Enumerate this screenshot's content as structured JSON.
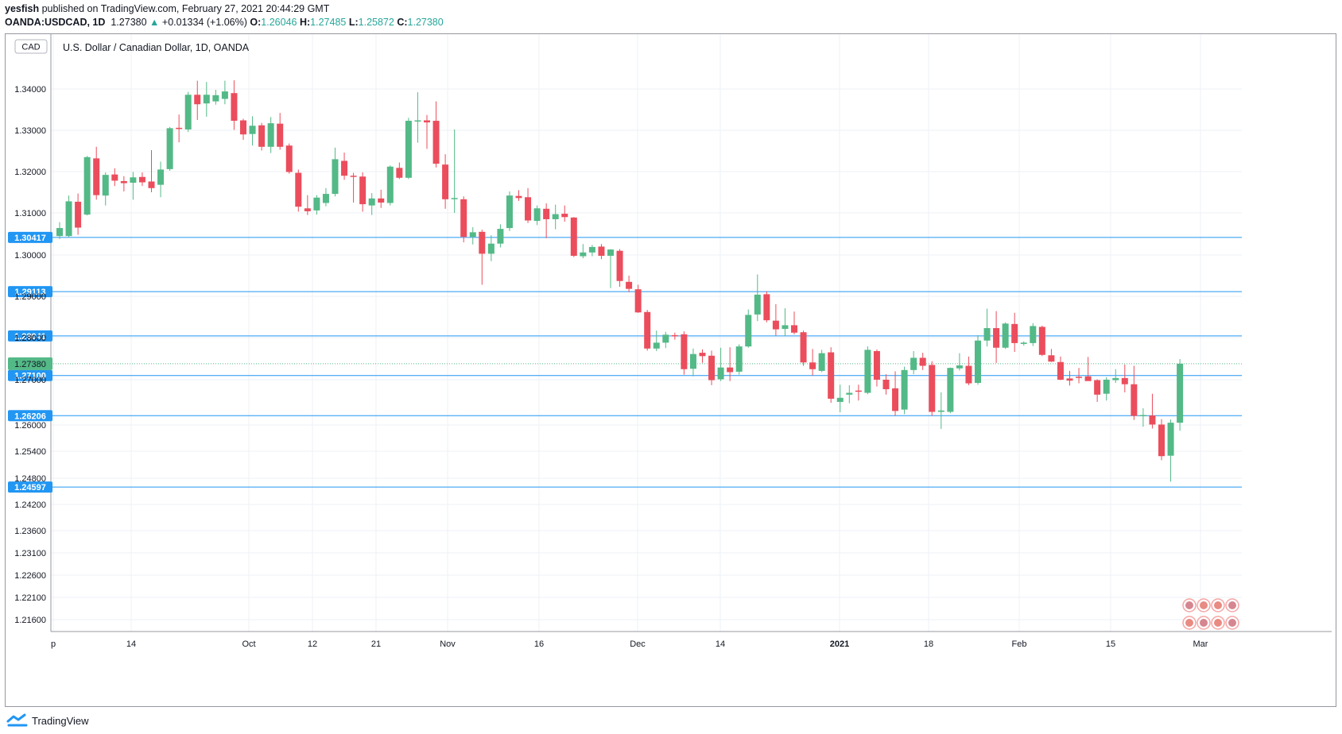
{
  "header": {
    "line1_user": "yesfish",
    "line1_rest": " published on TradingView.com, February 27, 2021 20:44:29 GMT",
    "symbol": "OANDA:USDCAD, 1D",
    "last": "1.27380",
    "change": "+0.01334 (+1.06%)",
    "o_label": "O:",
    "o_value": "1.26046",
    "h_label": "H:",
    "h_value": "1.27485",
    "l_label": "L:",
    "l_value": "1.25872",
    "c_label": "C:",
    "c_value": "1.27380"
  },
  "footer": {
    "brand": "TradingView"
  },
  "colors": {
    "up": "#53b987",
    "down": "#eb4d5c",
    "level_line": "#2196f3",
    "grid": "#eef1f4",
    "price_badge": "#53b987"
  },
  "chart_data": {
    "type": "candlestick",
    "title": "U.S. Dollar / Canadian Dollar, 1D, OANDA",
    "currency_badge": "CAD",
    "y_ticks": [
      "1.34000",
      "1.33000",
      "1.32000",
      "1.31000",
      "1.30000",
      "1.29000",
      "1.28000",
      "1.27000",
      "1.26000",
      "1.25400",
      "1.24800",
      "1.24200",
      "1.23600",
      "1.23100",
      "1.22600",
      "1.22100",
      "1.21600"
    ],
    "x_ticks": [
      "p",
      "14",
      "Oct",
      "12",
      "21",
      "Nov",
      "16",
      "Dec",
      "14",
      "2021",
      "18",
      "Feb",
      "15",
      "Mar"
    ],
    "x_ticks_bold": [
      "2021"
    ],
    "horizontal_levels": [
      "1.30417",
      "1.29113",
      "1.28041",
      "1.27100",
      "1.26206",
      "1.24597"
    ],
    "last_price_label": "1.27380",
    "candles": [
      {
        "o": 1.3045,
        "h": 1.3078,
        "l": 1.3038,
        "c": 1.3064
      },
      {
        "o": 1.3045,
        "h": 1.3142,
        "l": 1.3043,
        "c": 1.3128
      },
      {
        "o": 1.3127,
        "h": 1.3147,
        "l": 1.3048,
        "c": 1.3065
      },
      {
        "o": 1.3096,
        "h": 1.3238,
        "l": 1.3094,
        "c": 1.3235
      },
      {
        "o": 1.3232,
        "h": 1.326,
        "l": 1.3132,
        "c": 1.3143
      },
      {
        "o": 1.3142,
        "h": 1.3198,
        "l": 1.3118,
        "c": 1.3192
      },
      {
        "o": 1.3193,
        "h": 1.3208,
        "l": 1.3165,
        "c": 1.3178
      },
      {
        "o": 1.3177,
        "h": 1.3189,
        "l": 1.3152,
        "c": 1.3172
      },
      {
        "o": 1.3173,
        "h": 1.3199,
        "l": 1.3132,
        "c": 1.3186
      },
      {
        "o": 1.3187,
        "h": 1.3198,
        "l": 1.3165,
        "c": 1.3174
      },
      {
        "o": 1.3176,
        "h": 1.3252,
        "l": 1.315,
        "c": 1.316
      },
      {
        "o": 1.3168,
        "h": 1.3224,
        "l": 1.3138,
        "c": 1.3205
      },
      {
        "o": 1.3206,
        "h": 1.3308,
        "l": 1.3202,
        "c": 1.3305
      },
      {
        "o": 1.3306,
        "h": 1.3338,
        "l": 1.3271,
        "c": 1.3304
      },
      {
        "o": 1.3302,
        "h": 1.3393,
        "l": 1.3296,
        "c": 1.3386
      },
      {
        "o": 1.3386,
        "h": 1.342,
        "l": 1.3325,
        "c": 1.3363
      },
      {
        "o": 1.3365,
        "h": 1.3417,
        "l": 1.3333,
        "c": 1.3386
      },
      {
        "o": 1.337,
        "h": 1.3398,
        "l": 1.3362,
        "c": 1.3385
      },
      {
        "o": 1.3376,
        "h": 1.342,
        "l": 1.3363,
        "c": 1.3394
      },
      {
        "o": 1.339,
        "h": 1.3421,
        "l": 1.3301,
        "c": 1.3323
      },
      {
        "o": 1.3324,
        "h": 1.3328,
        "l": 1.3277,
        "c": 1.329
      },
      {
        "o": 1.3291,
        "h": 1.3334,
        "l": 1.3263,
        "c": 1.3311
      },
      {
        "o": 1.3312,
        "h": 1.3318,
        "l": 1.3251,
        "c": 1.326
      },
      {
        "o": 1.326,
        "h": 1.3332,
        "l": 1.3245,
        "c": 1.3317
      },
      {
        "o": 1.3316,
        "h": 1.3342,
        "l": 1.3253,
        "c": 1.326
      },
      {
        "o": 1.3263,
        "h": 1.3268,
        "l": 1.3195,
        "c": 1.3199
      },
      {
        "o": 1.3197,
        "h": 1.3205,
        "l": 1.3103,
        "c": 1.3115
      },
      {
        "o": 1.3111,
        "h": 1.3143,
        "l": 1.3095,
        "c": 1.3104
      },
      {
        "o": 1.3106,
        "h": 1.3143,
        "l": 1.3096,
        "c": 1.3137
      },
      {
        "o": 1.3124,
        "h": 1.316,
        "l": 1.3116,
        "c": 1.3146
      },
      {
        "o": 1.3146,
        "h": 1.3258,
        "l": 1.314,
        "c": 1.323
      },
      {
        "o": 1.3226,
        "h": 1.3246,
        "l": 1.318,
        "c": 1.319
      },
      {
        "o": 1.319,
        "h": 1.3197,
        "l": 1.3125,
        "c": 1.3188
      },
      {
        "o": 1.3188,
        "h": 1.3198,
        "l": 1.3103,
        "c": 1.3121
      },
      {
        "o": 1.3118,
        "h": 1.3148,
        "l": 1.3095,
        "c": 1.3135
      },
      {
        "o": 1.3135,
        "h": 1.3156,
        "l": 1.3112,
        "c": 1.3125
      },
      {
        "o": 1.3124,
        "h": 1.3215,
        "l": 1.3118,
        "c": 1.3212
      },
      {
        "o": 1.3209,
        "h": 1.3222,
        "l": 1.3182,
        "c": 1.3185
      },
      {
        "o": 1.3185,
        "h": 1.333,
        "l": 1.3182,
        "c": 1.3323
      },
      {
        "o": 1.3323,
        "h": 1.3392,
        "l": 1.327,
        "c": 1.3324
      },
      {
        "o": 1.3324,
        "h": 1.3337,
        "l": 1.3255,
        "c": 1.3319
      },
      {
        "o": 1.3323,
        "h": 1.337,
        "l": 1.321,
        "c": 1.3219
      },
      {
        "o": 1.3217,
        "h": 1.3242,
        "l": 1.311,
        "c": 1.3133
      },
      {
        "o": 1.3134,
        "h": 1.3302,
        "l": 1.31,
        "c": 1.3136
      },
      {
        "o": 1.3133,
        "h": 1.314,
        "l": 1.303,
        "c": 1.3043
      },
      {
        "o": 1.3043,
        "h": 1.3066,
        "l": 1.3025,
        "c": 1.3054
      },
      {
        "o": 1.3055,
        "h": 1.306,
        "l": 1.2928,
        "c": 1.3003
      },
      {
        "o": 1.3003,
        "h": 1.3047,
        "l": 1.2985,
        "c": 1.3027
      },
      {
        "o": 1.3027,
        "h": 1.3073,
        "l": 1.3018,
        "c": 1.3062
      },
      {
        "o": 1.3064,
        "h": 1.3152,
        "l": 1.3057,
        "c": 1.3142
      },
      {
        "o": 1.3141,
        "h": 1.3155,
        "l": 1.3129,
        "c": 1.3136
      },
      {
        "o": 1.3138,
        "h": 1.316,
        "l": 1.3076,
        "c": 1.3082
      },
      {
        "o": 1.3081,
        "h": 1.3118,
        "l": 1.3071,
        "c": 1.3111
      },
      {
        "o": 1.311,
        "h": 1.3123,
        "l": 1.304,
        "c": 1.3085
      },
      {
        "o": 1.3085,
        "h": 1.312,
        "l": 1.3061,
        "c": 1.3097
      },
      {
        "o": 1.3098,
        "h": 1.3118,
        "l": 1.3079,
        "c": 1.309
      },
      {
        "o": 1.3089,
        "h": 1.309,
        "l": 1.2995,
        "c": 1.2998
      },
      {
        "o": 1.2997,
        "h": 1.3026,
        "l": 1.2992,
        "c": 1.3006
      },
      {
        "o": 1.3006,
        "h": 1.3024,
        "l": 1.2997,
        "c": 1.3019
      },
      {
        "o": 1.302,
        "h": 1.3026,
        "l": 1.299,
        "c": 1.2998
      },
      {
        "o": 1.2998,
        "h": 1.3014,
        "l": 1.292,
        "c": 1.3013
      },
      {
        "o": 1.301,
        "h": 1.3014,
        "l": 1.2923,
        "c": 1.2937
      },
      {
        "o": 1.2935,
        "h": 1.295,
        "l": 1.291,
        "c": 1.2918
      },
      {
        "o": 1.2917,
        "h": 1.2928,
        "l": 1.286,
        "c": 1.2861
      },
      {
        "o": 1.2862,
        "h": 1.2867,
        "l": 1.2769,
        "c": 1.2774
      },
      {
        "o": 1.2774,
        "h": 1.2817,
        "l": 1.2768,
        "c": 1.2788
      },
      {
        "o": 1.2788,
        "h": 1.2814,
        "l": 1.2775,
        "c": 1.2807
      },
      {
        "o": 1.2806,
        "h": 1.2812,
        "l": 1.2795,
        "c": 1.2805
      },
      {
        "o": 1.2808,
        "h": 1.2815,
        "l": 1.2712,
        "c": 1.2725
      },
      {
        "o": 1.2726,
        "h": 1.2774,
        "l": 1.2708,
        "c": 1.2761
      },
      {
        "o": 1.2764,
        "h": 1.2772,
        "l": 1.274,
        "c": 1.2756
      },
      {
        "o": 1.2757,
        "h": 1.2769,
        "l": 1.2688,
        "c": 1.2699
      },
      {
        "o": 1.2701,
        "h": 1.2776,
        "l": 1.2697,
        "c": 1.2729
      },
      {
        "o": 1.2729,
        "h": 1.2777,
        "l": 1.2697,
        "c": 1.2718
      },
      {
        "o": 1.2719,
        "h": 1.2784,
        "l": 1.2712,
        "c": 1.2779
      },
      {
        "o": 1.2779,
        "h": 1.2868,
        "l": 1.2776,
        "c": 1.2855
      },
      {
        "o": 1.2856,
        "h": 1.2953,
        "l": 1.284,
        "c": 1.2904
      },
      {
        "o": 1.2905,
        "h": 1.2912,
        "l": 1.2837,
        "c": 1.2842
      },
      {
        "o": 1.2841,
        "h": 1.2881,
        "l": 1.2805,
        "c": 1.282
      },
      {
        "o": 1.2821,
        "h": 1.2871,
        "l": 1.2804,
        "c": 1.283
      },
      {
        "o": 1.283,
        "h": 1.2863,
        "l": 1.2808,
        "c": 1.2812
      },
      {
        "o": 1.2813,
        "h": 1.2817,
        "l": 1.2733,
        "c": 1.2741
      },
      {
        "o": 1.2741,
        "h": 1.2773,
        "l": 1.271,
        "c": 1.2725
      },
      {
        "o": 1.2721,
        "h": 1.2771,
        "l": 1.2718,
        "c": 1.2763
      },
      {
        "o": 1.2765,
        "h": 1.2777,
        "l": 1.2649,
        "c": 1.2658
      },
      {
        "o": 1.2651,
        "h": 1.2689,
        "l": 1.2628,
        "c": 1.266
      },
      {
        "o": 1.2667,
        "h": 1.2688,
        "l": 1.2648,
        "c": 1.2671
      },
      {
        "o": 1.2676,
        "h": 1.2689,
        "l": 1.2654,
        "c": 1.2675
      },
      {
        "o": 1.2671,
        "h": 1.2779,
        "l": 1.2668,
        "c": 1.2771
      },
      {
        "o": 1.2768,
        "h": 1.2772,
        "l": 1.2685,
        "c": 1.27
      },
      {
        "o": 1.27,
        "h": 1.2713,
        "l": 1.2667,
        "c": 1.2679
      },
      {
        "o": 1.2681,
        "h": 1.272,
        "l": 1.262,
        "c": 1.2631
      },
      {
        "o": 1.2634,
        "h": 1.2731,
        "l": 1.2624,
        "c": 1.2723
      },
      {
        "o": 1.2723,
        "h": 1.2768,
        "l": 1.2713,
        "c": 1.2752
      },
      {
        "o": 1.2752,
        "h": 1.2764,
        "l": 1.2723,
        "c": 1.2733
      },
      {
        "o": 1.2735,
        "h": 1.2744,
        "l": 1.262,
        "c": 1.2629
      },
      {
        "o": 1.2629,
        "h": 1.2672,
        "l": 1.2591,
        "c": 1.2632
      },
      {
        "o": 1.2629,
        "h": 1.2729,
        "l": 1.2626,
        "c": 1.2728
      },
      {
        "o": 1.2727,
        "h": 1.2763,
        "l": 1.2722,
        "c": 1.2734
      },
      {
        "o": 1.2733,
        "h": 1.2755,
        "l": 1.2688,
        "c": 1.2692
      },
      {
        "o": 1.2693,
        "h": 1.2806,
        "l": 1.2689,
        "c": 1.2793
      },
      {
        "o": 1.2793,
        "h": 1.287,
        "l": 1.2779,
        "c": 1.2823
      },
      {
        "o": 1.2823,
        "h": 1.2864,
        "l": 1.274,
        "c": 1.2776
      },
      {
        "o": 1.2776,
        "h": 1.2837,
        "l": 1.2773,
        "c": 1.2834
      },
      {
        "o": 1.2833,
        "h": 1.286,
        "l": 1.2766,
        "c": 1.2787
      },
      {
        "o": 1.2785,
        "h": 1.2791,
        "l": 1.2781,
        "c": 1.2788
      },
      {
        "o": 1.2787,
        "h": 1.2835,
        "l": 1.278,
        "c": 1.2828
      },
      {
        "o": 1.2826,
        "h": 1.2829,
        "l": 1.2756,
        "c": 1.2759
      },
      {
        "o": 1.2758,
        "h": 1.2773,
        "l": 1.2742,
        "c": 1.2743
      },
      {
        "o": 1.2742,
        "h": 1.2755,
        "l": 1.2699,
        "c": 1.27
      },
      {
        "o": 1.2703,
        "h": 1.2721,
        "l": 1.2687,
        "c": 1.2698
      },
      {
        "o": 1.2707,
        "h": 1.2728,
        "l": 1.2692,
        "c": 1.2705
      },
      {
        "o": 1.2708,
        "h": 1.2754,
        "l": 1.2701,
        "c": 1.2697
      },
      {
        "o": 1.2699,
        "h": 1.2701,
        "l": 1.2651,
        "c": 1.2667
      },
      {
        "o": 1.2669,
        "h": 1.2706,
        "l": 1.2654,
        "c": 1.27
      },
      {
        "o": 1.2699,
        "h": 1.2725,
        "l": 1.2693,
        "c": 1.2704
      },
      {
        "o": 1.2704,
        "h": 1.2736,
        "l": 1.2672,
        "c": 1.269
      },
      {
        "o": 1.269,
        "h": 1.2733,
        "l": 1.2611,
        "c": 1.262
      },
      {
        "o": 1.262,
        "h": 1.2637,
        "l": 1.2596,
        "c": 1.2622
      },
      {
        "o": 1.2621,
        "h": 1.2669,
        "l": 1.2592,
        "c": 1.2601
      },
      {
        "o": 1.2601,
        "h": 1.2613,
        "l": 1.252,
        "c": 1.2529
      },
      {
        "o": 1.253,
        "h": 1.2612,
        "l": 1.2472,
        "c": 1.2605
      },
      {
        "o": 1.2605,
        "h": 1.2749,
        "l": 1.2587,
        "c": 1.2738
      }
    ]
  }
}
